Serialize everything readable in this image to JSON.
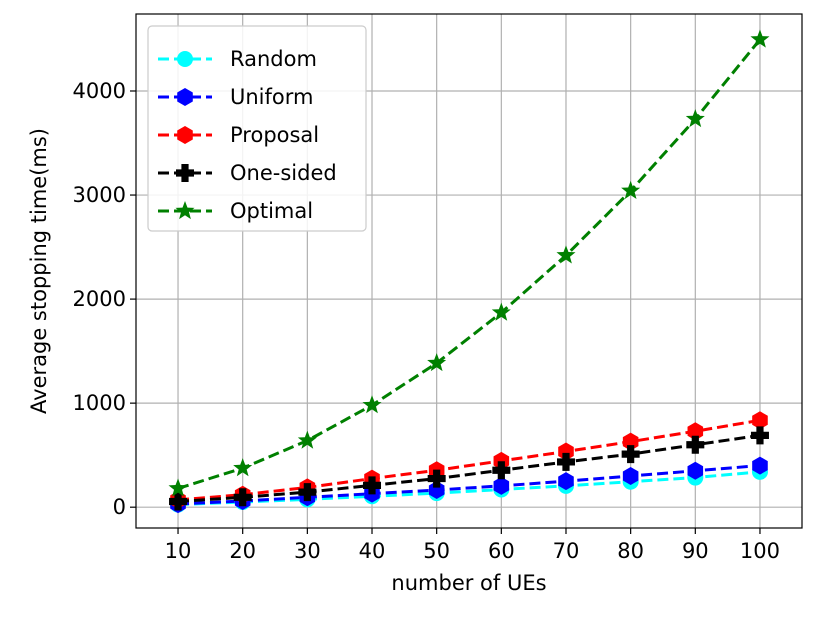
{
  "chart_data": {
    "type": "line",
    "xlabel": "number of UEs",
    "ylabel": "Average stopping time(ms)",
    "x": [
      10,
      20,
      30,
      40,
      50,
      60,
      70,
      80,
      90,
      100
    ],
    "xlim": [
      3.5,
      106.5
    ],
    "ylim": [
      -200,
      4740
    ],
    "xticks": [
      "10",
      "20",
      "30",
      "40",
      "50",
      "60",
      "70",
      "80",
      "90",
      "100"
    ],
    "yticks": [
      0,
      1000,
      2000,
      3000,
      4000
    ],
    "yticklabels": [
      "0",
      "1000",
      "2000",
      "3000",
      "4000"
    ],
    "grid": true,
    "legend_position": "top-left",
    "series": [
      {
        "name": "Random",
        "color": "#00ffff",
        "marker": "circle",
        "values": [
          25,
          50,
          75,
          105,
          135,
          170,
          205,
          245,
          285,
          340
        ]
      },
      {
        "name": "Uniform",
        "color": "#0000ff",
        "marker": "hexagon",
        "values": [
          30,
          60,
          95,
          130,
          165,
          205,
          250,
          300,
          350,
          400
        ]
      },
      {
        "name": "Proposal",
        "color": "#ff0000",
        "marker": "hexagon",
        "values": [
          70,
          120,
          190,
          275,
          355,
          445,
          535,
          630,
          730,
          835
        ]
      },
      {
        "name": "One-sided",
        "color": "#000000",
        "marker": "plus",
        "values": [
          55,
          95,
          145,
          210,
          275,
          355,
          435,
          510,
          600,
          690
        ]
      },
      {
        "name": "Optimal",
        "color": "#008000",
        "marker": "star",
        "values": [
          180,
          375,
          640,
          980,
          1385,
          1870,
          2420,
          3040,
          3730,
          4495
        ]
      }
    ]
  }
}
